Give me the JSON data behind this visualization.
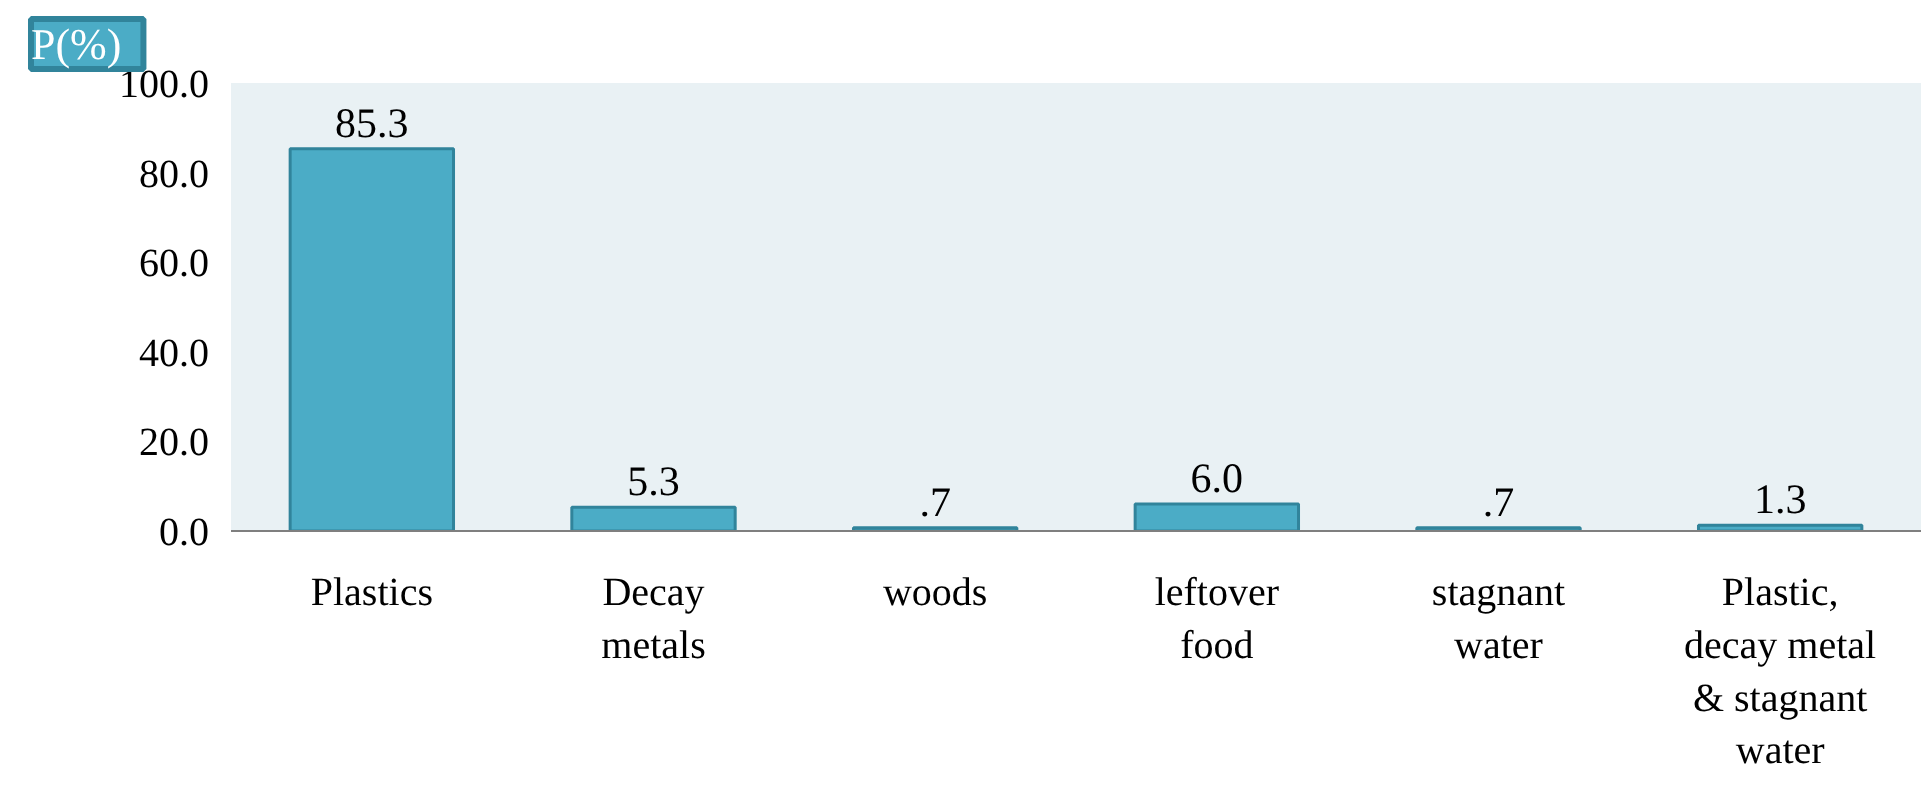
{
  "chart_data": {
    "type": "bar",
    "ylabel": "P(%)",
    "categories": [
      "Plastics",
      "Decay metals",
      "woods",
      "leftover food",
      "stagnant water",
      "Plastic, decay metal & stagnant water"
    ],
    "values": [
      85.3,
      5.3,
      0.7,
      6.0,
      0.7,
      1.3
    ],
    "value_labels": [
      "85.3",
      "5.3",
      ".7",
      "6.0",
      ".7",
      "1.3"
    ],
    "color": "#4bacc6",
    "ylim": [
      0,
      100
    ],
    "yticks": [
      {
        "value": 0,
        "label": "0.0"
      },
      {
        "value": 20,
        "label": "20.0"
      },
      {
        "value": 40,
        "label": "40.0"
      },
      {
        "value": 60,
        "label": "60.0"
      },
      {
        "value": 80,
        "label": "80.0"
      },
      {
        "value": 100,
        "label": "100.0"
      }
    ],
    "grid": false
  }
}
